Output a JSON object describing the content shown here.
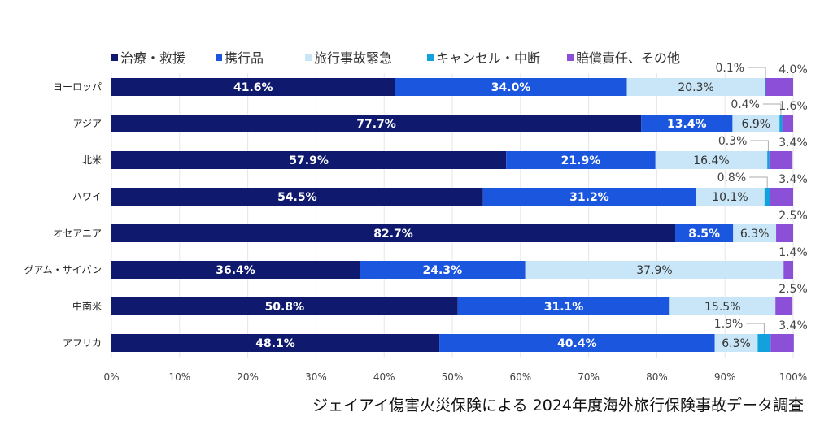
{
  "chart_data": {
    "type": "bar",
    "orientation": "horizontal",
    "stacked": true,
    "categories": [
      "ヨーロッパ",
      "アジア",
      "北米",
      "ハワイ",
      "オセアニア",
      "グアム・サイパン",
      "中南米",
      "アフリカ"
    ],
    "series": [
      {
        "name": "治療・救援",
        "color": "#0f1a6e",
        "values": [
          41.6,
          77.7,
          57.9,
          54.5,
          82.7,
          36.4,
          50.8,
          48.1
        ]
      },
      {
        "name": "携行品",
        "color": "#1b56de",
        "values": [
          34.0,
          13.4,
          21.9,
          31.2,
          8.5,
          24.3,
          31.1,
          40.4
        ]
      },
      {
        "name": "旅行事故緊急",
        "color": "#c8e6f7",
        "values": [
          20.3,
          6.9,
          16.4,
          10.1,
          6.3,
          37.9,
          15.5,
          6.3
        ]
      },
      {
        "name": "キャンセル・中断",
        "color": "#12a1dc",
        "values": [
          0.1,
          0.4,
          0.3,
          0.8,
          null,
          null,
          null,
          1.9
        ]
      },
      {
        "name": "賠償責任、その他",
        "color": "#8b4fd8",
        "values": [
          4.0,
          1.6,
          3.4,
          3.4,
          2.5,
          1.4,
          2.5,
          3.4
        ]
      }
    ],
    "xlim": [
      0,
      100
    ],
    "xticks": [
      "0%",
      "10%",
      "20%",
      "30%",
      "40%",
      "50%",
      "60%",
      "70%",
      "80%",
      "90%",
      "100%"
    ],
    "grid": true,
    "legend": "top",
    "value_suffix": "%"
  },
  "source": "ジェイアイ傷害火災保険による 2024年度海外旅行保険事故データ調査"
}
